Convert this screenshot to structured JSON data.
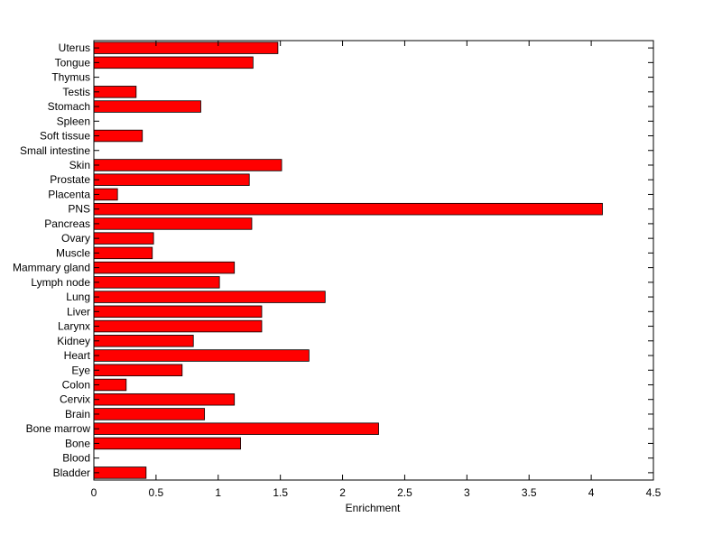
{
  "chart_data": {
    "type": "bar",
    "orientation": "horizontal",
    "title": "",
    "xlabel": "Enrichment",
    "ylabel": "",
    "xlim": [
      0,
      4.5
    ],
    "xticks": [
      "0",
      "0.5",
      "1",
      "1.5",
      "2",
      "2.5",
      "3",
      "3.5",
      "4",
      "4.5"
    ],
    "grid": false,
    "bar_color": "#ff0000",
    "categories": [
      "Bladder",
      "Blood",
      "Bone",
      "Bone marrow",
      "Brain",
      "Cervix",
      "Colon",
      "Eye",
      "Heart",
      "Kidney",
      "Larynx",
      "Liver",
      "Lung",
      "Lymph node",
      "Mammary gland",
      "Muscle",
      "Ovary",
      "Pancreas",
      "PNS",
      "Placenta",
      "Prostate",
      "Skin",
      "Small intestine",
      "Soft tissue",
      "Spleen",
      "Stomach",
      "Testis",
      "Thymus",
      "Tongue",
      "Uterus"
    ],
    "values": [
      0.42,
      0,
      1.18,
      2.29,
      0.89,
      1.13,
      0.26,
      0.71,
      1.73,
      0.8,
      1.35,
      1.35,
      1.86,
      1.01,
      1.13,
      0.47,
      0.48,
      1.27,
      4.09,
      0.19,
      1.25,
      1.51,
      0,
      0.39,
      0,
      0.86,
      0.34,
      0,
      1.28,
      1.48
    ]
  }
}
